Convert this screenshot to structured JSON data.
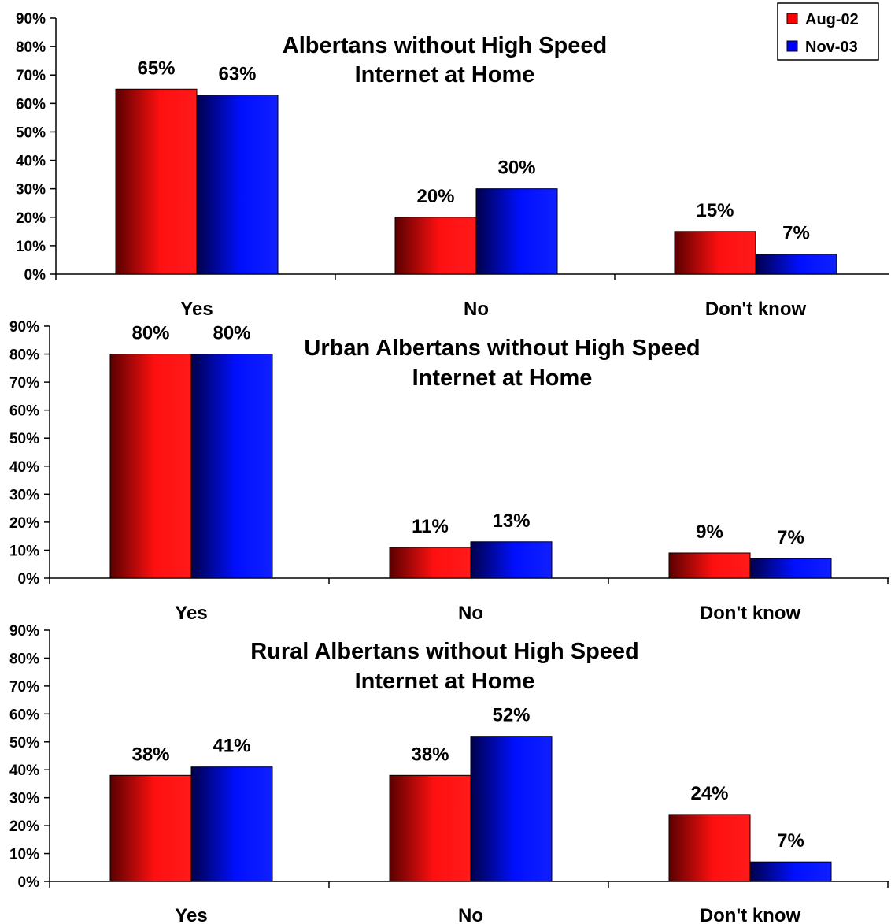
{
  "legend": {
    "items": [
      {
        "label": "Aug-02",
        "color": "#ff0000"
      },
      {
        "label": "Nov-03",
        "color": "#0000ff"
      }
    ]
  },
  "chart_data": [
    {
      "type": "bar",
      "title": [
        "Albertans without High Speed",
        "Internet at Home"
      ],
      "categories": [
        "Yes",
        "No",
        "Don't know"
      ],
      "series": [
        {
          "name": "Aug-02",
          "values": [
            65,
            20,
            15
          ],
          "labels": [
            "65%",
            "20%",
            "15%"
          ]
        },
        {
          "name": "Nov-03",
          "values": [
            63,
            30,
            7
          ],
          "labels": [
            "63%",
            "30%",
            "7%"
          ]
        }
      ],
      "ylim": [
        0,
        90
      ],
      "yticks": [
        0,
        10,
        20,
        30,
        40,
        50,
        60,
        70,
        80,
        90
      ],
      "ytick_labels": [
        "0%",
        "10%",
        "20%",
        "30%",
        "40%",
        "50%",
        "60%",
        "70%",
        "80%",
        "90%"
      ],
      "grid": false
    },
    {
      "type": "bar",
      "title": [
        "Urban Albertans without High Speed",
        "Internet at Home"
      ],
      "categories": [
        "Yes",
        "No",
        "Don't know"
      ],
      "series": [
        {
          "name": "Aug-02",
          "values": [
            80,
            11,
            9
          ],
          "labels": [
            "80%",
            "11%",
            "9%"
          ]
        },
        {
          "name": "Nov-03",
          "values": [
            80,
            13,
            7
          ],
          "labels": [
            "80%",
            "13%",
            "7%"
          ]
        }
      ],
      "ylim": [
        0,
        90
      ],
      "yticks": [
        0,
        10,
        20,
        30,
        40,
        50,
        60,
        70,
        80,
        90
      ],
      "ytick_labels": [
        "0%",
        "10%",
        "20%",
        "30%",
        "40%",
        "50%",
        "60%",
        "70%",
        "80%",
        "90%"
      ],
      "grid": false
    },
    {
      "type": "bar",
      "title": [
        "Rural Albertans without High Speed",
        "Internet at Home"
      ],
      "categories": [
        "Yes",
        "No",
        "Don't know"
      ],
      "series": [
        {
          "name": "Aug-02",
          "values": [
            38,
            38,
            24
          ],
          "labels": [
            "38%",
            "38%",
            "24%"
          ]
        },
        {
          "name": "Nov-03",
          "values": [
            41,
            52,
            7
          ],
          "labels": [
            "41%",
            "52%",
            "7%"
          ]
        }
      ],
      "ylim": [
        0,
        90
      ],
      "yticks": [
        0,
        10,
        20,
        30,
        40,
        50,
        60,
        70,
        80,
        90
      ],
      "ytick_labels": [
        "0%",
        "10%",
        "20%",
        "30%",
        "40%",
        "50%",
        "60%",
        "70%",
        "80%",
        "90%"
      ],
      "grid": false
    }
  ]
}
